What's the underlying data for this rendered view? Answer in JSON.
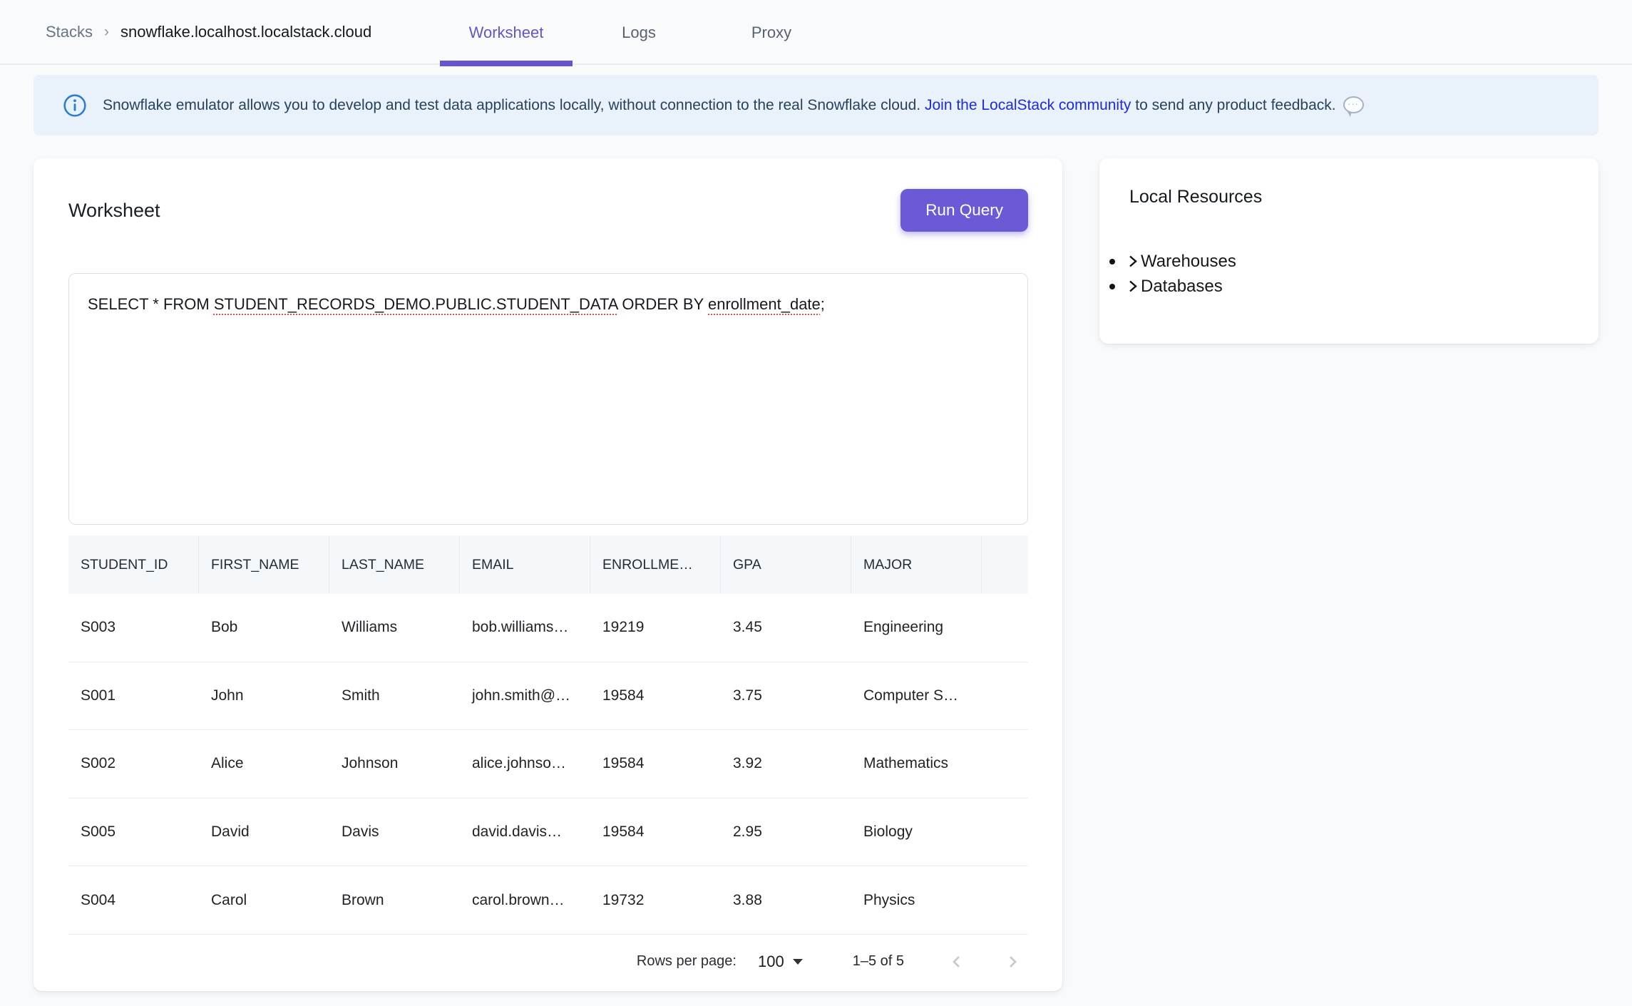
{
  "page": {
    "background": "#f8fafc",
    "accent_purple": "#6a5ad6"
  },
  "header": {
    "breadcrumb": {
      "stacks": "Stacks",
      "separator": "›",
      "current": "snowflake.localhost.localstack.cloud"
    },
    "tabs": [
      {
        "label": "Worksheet",
        "active": true
      },
      {
        "label": "Logs",
        "active": false
      },
      {
        "label": "Proxy",
        "active": false
      }
    ]
  },
  "banner": {
    "icon": "info-icon",
    "text_before_link": "Snowflake emulator allows you to develop and test data applications locally, without connection to the real Snowflake cloud. ",
    "link_text": "Join the LocalStack community",
    "text_after_link": " to send any product feedback.",
    "trailing_icon": "speech-bubble-icon",
    "colors": {
      "background": "#e9f1fa",
      "text": "#26425c",
      "link": "#1b2ae4",
      "icon": "#2b7cd3"
    }
  },
  "worksheet": {
    "title": "Worksheet",
    "run_button": "Run Query",
    "sql": {
      "part1": "SELECT * FROM ",
      "table_ref": "STUDENT_RECORDS_DEMO.PUBLIC.STUDENT_DATA",
      "part2": " ORDER BY ",
      "column_ref": "enrollment_date",
      "part3": ";"
    },
    "table": {
      "columns": [
        "STUDENT_ID",
        "FIRST_NAME",
        "LAST_NAME",
        "EMAIL",
        "ENROLLME…",
        "GPA",
        "MAJOR"
      ],
      "rows": [
        [
          "S003",
          "Bob",
          "Williams",
          "bob.williams…",
          "19219",
          "3.45",
          "Engineering"
        ],
        [
          "S001",
          "John",
          "Smith",
          "john.smith@…",
          "19584",
          "3.75",
          "Computer S…"
        ],
        [
          "S002",
          "Alice",
          "Johnson",
          "alice.johnso…",
          "19584",
          "3.92",
          "Mathematics"
        ],
        [
          "S005",
          "David",
          "Davis",
          "david.davis…",
          "19584",
          "2.95",
          "Biology"
        ],
        [
          "S004",
          "Carol",
          "Brown",
          "carol.brown…",
          "19732",
          "3.88",
          "Physics"
        ]
      ]
    },
    "pagination": {
      "rows_per_page_label": "Rows per page:",
      "rows_per_page_value": "100",
      "range_label": "1–5 of 5"
    }
  },
  "sidebar": {
    "title": "Local Resources",
    "items": [
      {
        "label": "Warehouses"
      },
      {
        "label": "Databases"
      }
    ]
  }
}
